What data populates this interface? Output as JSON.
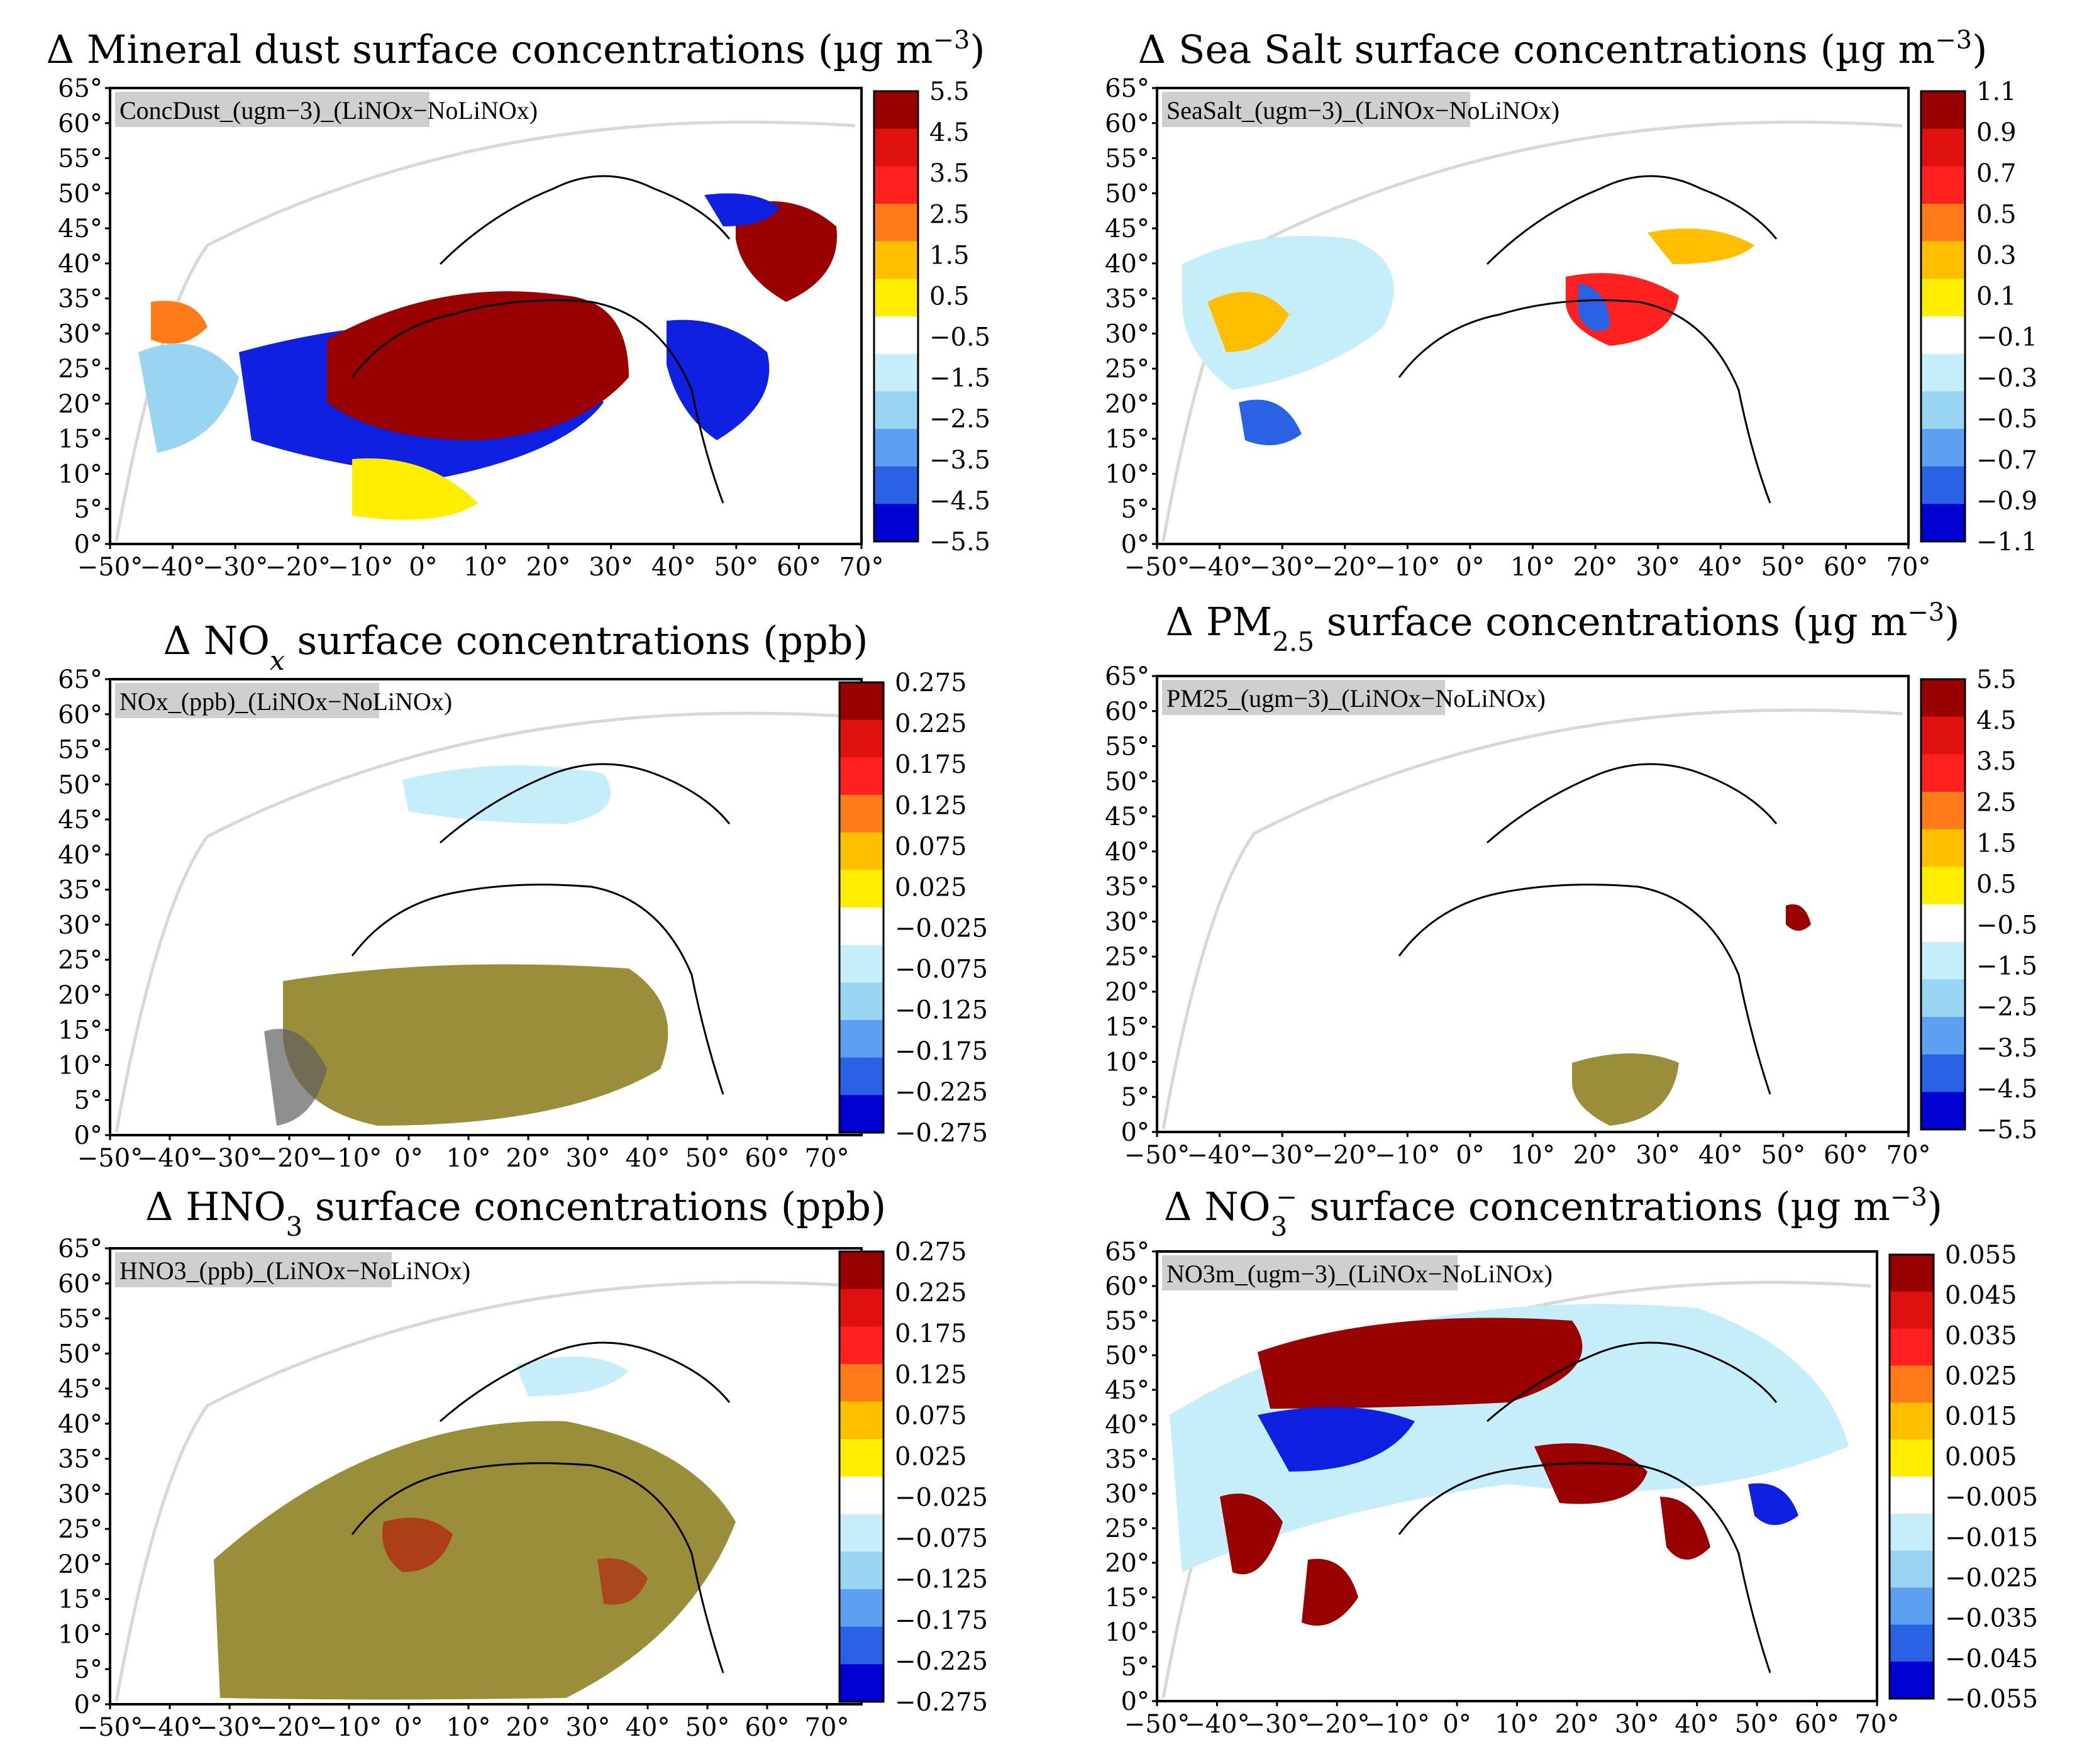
{
  "figure": {
    "lon_ticks": [
      "−50°",
      "−40°",
      "−30°",
      "−20°",
      "−10°",
      "0°",
      "10°",
      "20°",
      "30°",
      "40°",
      "50°",
      "60°",
      "70°"
    ],
    "lat_ticks": [
      "0°",
      "5°",
      "10°",
      "15°",
      "20°",
      "25°",
      "30°",
      "35°",
      "40°",
      "45°",
      "50°",
      "55°",
      "60°",
      "65°"
    ]
  },
  "colorbar_colors": [
    "#0000d0",
    "#2a62e6",
    "#5d9ff0",
    "#99d5f2",
    "#c6eefa",
    "#ffffff",
    "#ffee00",
    "#ffbf00",
    "#ff7b1a",
    "#ff2020",
    "#de1010",
    "#990000"
  ],
  "anomaly_colors": {
    "positive": "#990000",
    "negative": "#1020e0",
    "stipple": "#505050",
    "olive": "#8a7a18"
  },
  "panels": [
    {
      "id": "dust",
      "title": {
        "pre": "Δ Mineral dust surface concentrations (µg m",
        "sup": "−3",
        "post": ")",
        "sub": ""
      },
      "label": "ConcDust_(ugm−3)_(LiNOx−NoLiNOx)",
      "colorbar": [
        "5.5",
        "4.5",
        "3.5",
        "2.5",
        "1.5",
        "0.5",
        "−0.5",
        "−1.5",
        "−2.5",
        "−3.5",
        "−4.5",
        "−5.5"
      ]
    },
    {
      "id": "seasalt",
      "title": {
        "pre": "Δ Sea Salt surface concentrations (µg m",
        "sup": "−3",
        "post": ")",
        "sub": ""
      },
      "label": "SeaSalt_(ugm−3)_(LiNOx−NoLiNOx)",
      "colorbar": [
        "1.1",
        "0.9",
        "0.7",
        "0.5",
        "0.3",
        "0.1",
        "−0.1",
        "−0.3",
        "−0.5",
        "−0.7",
        "−0.9",
        "−1.1"
      ]
    },
    {
      "id": "nox",
      "title": {
        "pre": "Δ NO",
        "sub": "x",
        "post": " surface concentrations (ppb)",
        "sup": ""
      },
      "label": "NOx_(ppb)_(LiNOx−NoLiNOx)",
      "colorbar": [
        "0.275",
        "0.225",
        "0.175",
        "0.125",
        "0.075",
        "0.025",
        "−0.025",
        "−0.075",
        "−0.125",
        "−0.175",
        "−0.225",
        "−0.275"
      ]
    },
    {
      "id": "pm25",
      "title": {
        "pre": "Δ PM",
        "sub": "2.5",
        "post": " surface concentrations (µg m",
        "sup": "−3",
        "post2": ")"
      },
      "label": "PM25_(ugm−3)_(LiNOx−NoLiNOx)",
      "colorbar": [
        "5.5",
        "4.5",
        "3.5",
        "2.5",
        "1.5",
        "0.5",
        "−0.5",
        "−1.5",
        "−2.5",
        "−3.5",
        "−4.5",
        "−5.5"
      ]
    },
    {
      "id": "hno3",
      "title": {
        "pre": "Δ HNO",
        "sub": "3",
        "post": " surface concentrations (ppb)",
        "sup": ""
      },
      "label": "HNO3_(ppb)_(LiNOx−NoLiNOx)",
      "colorbar": [
        "0.275",
        "0.225",
        "0.175",
        "0.125",
        "0.075",
        "0.025",
        "−0.025",
        "−0.075",
        "−0.125",
        "−0.175",
        "−0.225",
        "−0.275"
      ]
    },
    {
      "id": "no3m",
      "title": {
        "pre": "Δ NO",
        "sub": "3",
        "sup": "−",
        "post": " surface concentrations (µg m",
        "sup2": "−3",
        "post2": ")"
      },
      "label": "NO3m_(ugm−3)_(LiNOx−NoLiNOx)",
      "colorbar": [
        "0.055",
        "0.045",
        "0.035",
        "0.025",
        "0.015",
        "0.005",
        "−0.005",
        "−0.015",
        "−0.025",
        "−0.035",
        "−0.045",
        "−0.055"
      ]
    }
  ]
}
